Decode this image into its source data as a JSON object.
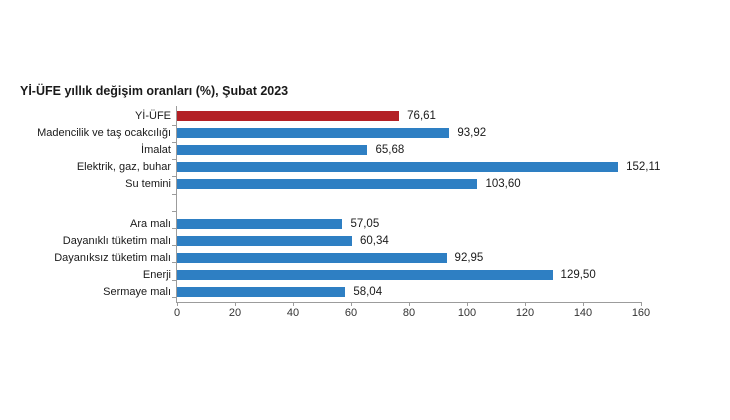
{
  "chart_data": {
    "type": "bar",
    "orientation": "horizontal",
    "title": "Yİ-ÜFE yıllık değişim oranları (%), Şubat 2023",
    "categories": [
      "Yİ-ÜFE",
      "Madencilik ve taş ocakcılığı",
      "İmalat",
      "Elektrik, gaz, buhar",
      "Su temini",
      "Ara malı",
      "Dayanıklı tüketim malı",
      "Dayanıksız tüketim malı",
      "Enerji",
      "Sermaye malı"
    ],
    "values": [
      76.61,
      93.92,
      65.68,
      152.11,
      103.6,
      57.05,
      60.34,
      92.95,
      129.5,
      58.04
    ],
    "value_labels": [
      "76,61",
      "93,92",
      "65,68",
      "152,11",
      "103,60",
      "57,05",
      "60,34",
      "92,95",
      "129,50",
      "58,04"
    ],
    "highlight_index": 0,
    "group_break_after_index": 4,
    "x_ticks": [
      0,
      20,
      40,
      60,
      80,
      100,
      120,
      140,
      160
    ],
    "xlim": [
      0,
      160
    ],
    "grid": false,
    "legend": null,
    "colors": {
      "highlight_bar": "#b32025",
      "bar": "#2e7fc3",
      "axis": "#9c9c9c",
      "label_text": "#1a1a1a",
      "tick_text": "#333333"
    }
  }
}
